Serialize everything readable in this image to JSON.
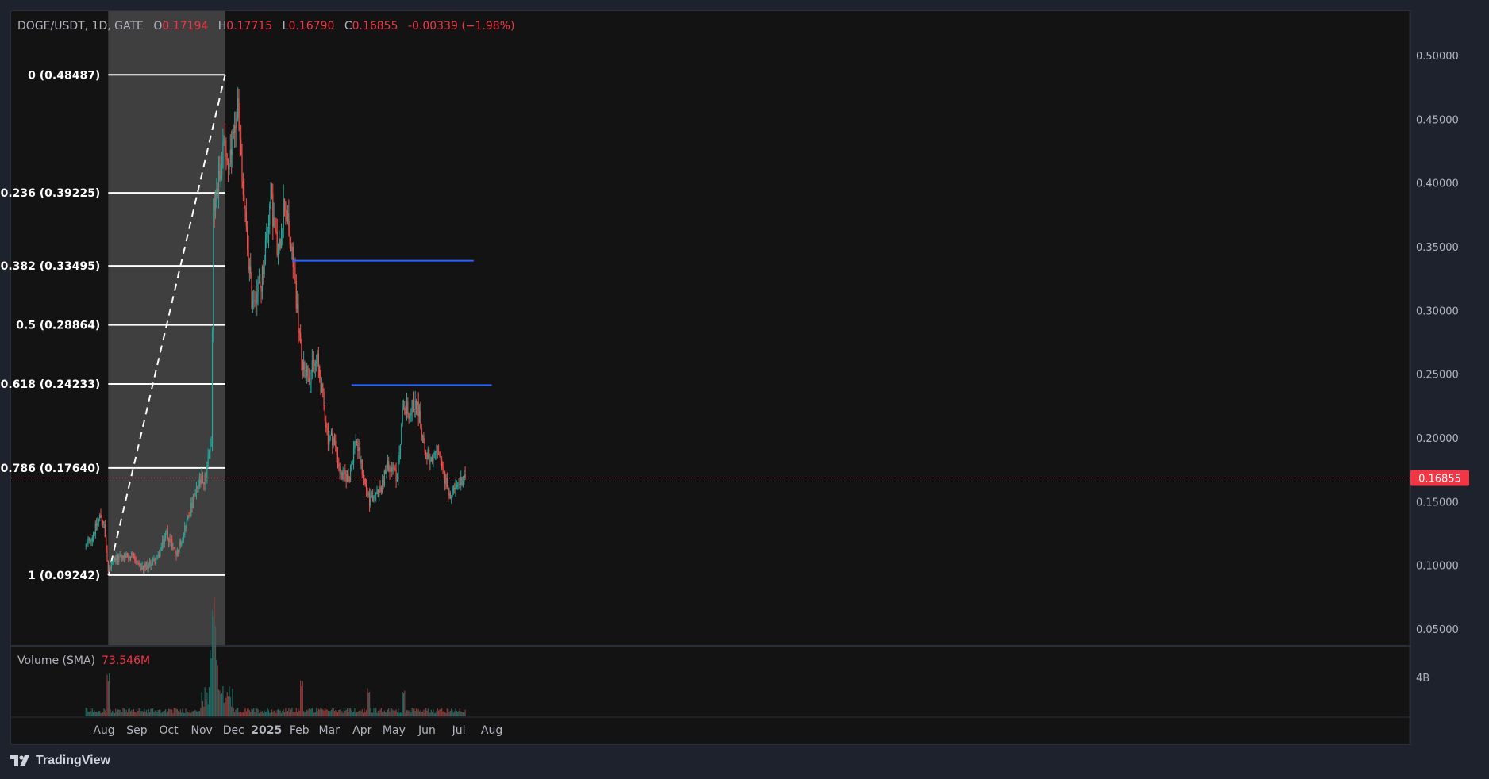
{
  "header": {
    "ticker": "DOGE/USDT, 1D, GATE",
    "o_label": "O",
    "o_val": "0.17194",
    "h_label": "H",
    "h_val": "0.17715",
    "l_label": "L",
    "l_val": "0.16790",
    "c_label": "C",
    "c_val": "0.16855",
    "change": "-0.00339 (−1.98%)"
  },
  "volume": {
    "label": "Volume (SMA)",
    "value": "73.546M",
    "axis_label": "4B"
  },
  "price_axis": [
    "0.50000",
    "0.45000",
    "0.40000",
    "0.35000",
    "0.30000",
    "0.25000",
    "0.20000",
    "0.15000",
    "0.10000",
    "0.05000"
  ],
  "current_price": "0.16855",
  "time_axis": [
    "Aug",
    "Sep",
    "Oct",
    "Nov",
    "Dec",
    "2025",
    "Feb",
    "Mar",
    "Apr",
    "May",
    "Jun",
    "Jul",
    "Aug"
  ],
  "fib_levels": [
    {
      "ratio": "0",
      "value": 0.48487,
      "label": "0 (0.48487)"
    },
    {
      "ratio": "0.236",
      "value": 0.39225,
      "label": "0.236 (0.39225)"
    },
    {
      "ratio": "0.382",
      "value": 0.33495,
      "label": "0.382 (0.33495)"
    },
    {
      "ratio": "0.5",
      "value": 0.28864,
      "label": "0.5 (0.28864)"
    },
    {
      "ratio": "0.618",
      "value": 0.24233,
      "label": "0.618 (0.24233)"
    },
    {
      "ratio": "0.786",
      "value": 0.1764,
      "label": "0.786 (0.17640)"
    },
    {
      "ratio": "1",
      "value": 0.09242,
      "label": "1 (0.09242)"
    }
  ],
  "horizontal_lines": [
    {
      "value": 0.339,
      "from": "2025-01-25",
      "to": "2025-07-15"
    },
    {
      "value": 0.2415,
      "from": "2025-03-22",
      "to": "2025-08-01"
    }
  ],
  "brand": "TradingView",
  "colors": {
    "up": "#26a69a",
    "down": "#ef5350",
    "line": "#2962ff",
    "fib": "#ffffff",
    "price_tag": "#f23645"
  },
  "chart_data": {
    "type": "candlestick",
    "title": "DOGE/USDT, 1D, GATE",
    "x_start": "2024-07-15",
    "x_end": "2025-08-05",
    "ylim": [
      0.03,
      0.52
    ],
    "y_scale": "linear",
    "grid": false,
    "fib_retracement": {
      "from_date": "2024-08-05",
      "to_date": "2024-11-23",
      "high": 0.48487,
      "low": 0.09242
    },
    "close_path": [
      [
        "2024-07-15",
        0.115
      ],
      [
        "2024-07-22",
        0.125
      ],
      [
        "2024-07-29",
        0.14
      ],
      [
        "2024-08-01",
        0.13
      ],
      [
        "2024-08-05",
        0.095
      ],
      [
        "2024-08-12",
        0.105
      ],
      [
        "2024-08-26",
        0.108
      ],
      [
        "2024-09-06",
        0.097
      ],
      [
        "2024-09-20",
        0.105
      ],
      [
        "2024-09-29",
        0.126
      ],
      [
        "2024-10-08",
        0.108
      ],
      [
        "2024-10-20",
        0.14
      ],
      [
        "2024-10-29",
        0.163
      ],
      [
        "2024-11-05",
        0.17
      ],
      [
        "2024-11-10",
        0.2
      ],
      [
        "2024-11-12",
        0.38
      ],
      [
        "2024-11-15",
        0.4
      ],
      [
        "2024-11-23",
        0.43
      ],
      [
        "2024-11-27",
        0.41
      ],
      [
        "2024-12-05",
        0.46
      ],
      [
        "2024-12-09",
        0.4
      ],
      [
        "2024-12-18",
        0.31
      ],
      [
        "2024-12-27",
        0.32
      ],
      [
        "2025-01-05",
        0.39
      ],
      [
        "2025-01-12",
        0.34
      ],
      [
        "2025-01-18",
        0.39
      ],
      [
        "2025-01-22",
        0.36
      ],
      [
        "2025-01-27",
        0.33
      ],
      [
        "2025-02-03",
        0.26
      ],
      [
        "2025-02-10",
        0.25
      ],
      [
        "2025-02-18",
        0.26
      ],
      [
        "2025-02-28",
        0.2
      ],
      [
        "2025-03-05",
        0.2
      ],
      [
        "2025-03-12",
        0.17
      ],
      [
        "2025-03-20",
        0.17
      ],
      [
        "2025-03-26",
        0.2
      ],
      [
        "2025-04-02",
        0.17
      ],
      [
        "2025-04-08",
        0.15
      ],
      [
        "2025-04-18",
        0.16
      ],
      [
        "2025-04-26",
        0.18
      ],
      [
        "2025-05-04",
        0.17
      ],
      [
        "2025-05-10",
        0.23
      ],
      [
        "2025-05-14",
        0.22
      ],
      [
        "2025-05-22",
        0.23
      ],
      [
        "2025-05-30",
        0.19
      ],
      [
        "2025-06-06",
        0.18
      ],
      [
        "2025-06-11",
        0.19
      ],
      [
        "2025-06-20",
        0.16
      ],
      [
        "2025-06-25",
        0.155
      ],
      [
        "2025-07-04",
        0.168
      ],
      [
        "2025-07-07",
        0.16855
      ]
    ],
    "volume_spikes": [
      [
        "2024-08-05",
        0.9
      ],
      [
        "2024-11-10",
        1.5
      ],
      [
        "2024-11-12",
        2.6
      ],
      [
        "2024-11-13",
        2.4
      ],
      [
        "2024-11-15",
        1.4
      ],
      [
        "2025-02-03",
        0.8
      ],
      [
        "2025-04-07",
        0.6
      ],
      [
        "2025-05-10",
        0.55
      ]
    ]
  }
}
